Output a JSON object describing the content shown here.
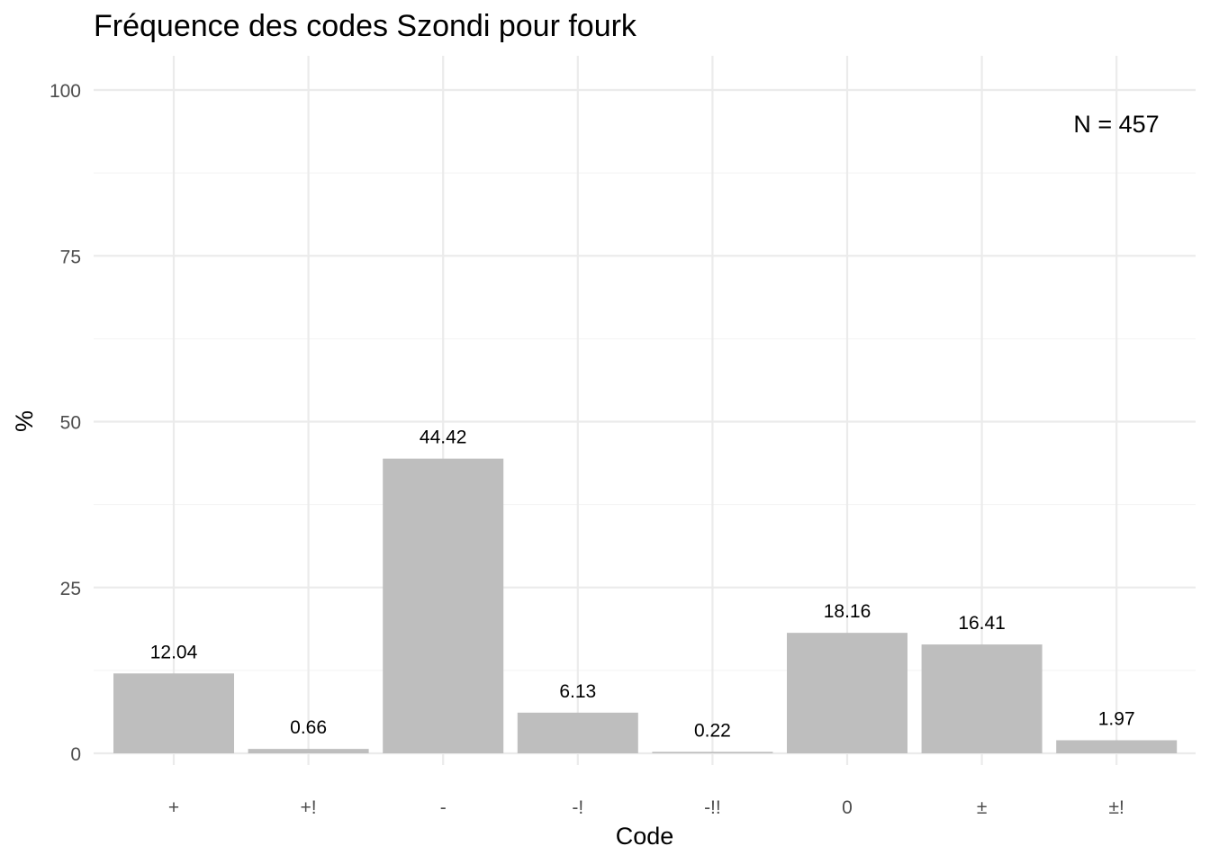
{
  "chart_data": {
    "type": "bar",
    "title": "Fréquence des codes Szondi pour fourk",
    "xlabel": "Code",
    "ylabel": "%",
    "categories": [
      "+",
      "+!",
      "-",
      "-!",
      "-!!",
      "0",
      "±",
      "±!"
    ],
    "values": [
      12.04,
      0.66,
      44.42,
      6.13,
      0.22,
      18.16,
      16.41,
      1.97
    ],
    "value_labels": [
      "12.04",
      "0.66",
      "44.42",
      "6.13",
      "0.22",
      "18.16",
      "16.41",
      "1.97"
    ],
    "yticks": [
      0,
      25,
      50,
      75,
      100
    ],
    "ytick_labels": [
      "0",
      "25",
      "50",
      "75",
      "100"
    ],
    "ylim": [
      0,
      100
    ],
    "grid": true,
    "bar_color": "#bebebe",
    "annotation": "N = 457"
  }
}
